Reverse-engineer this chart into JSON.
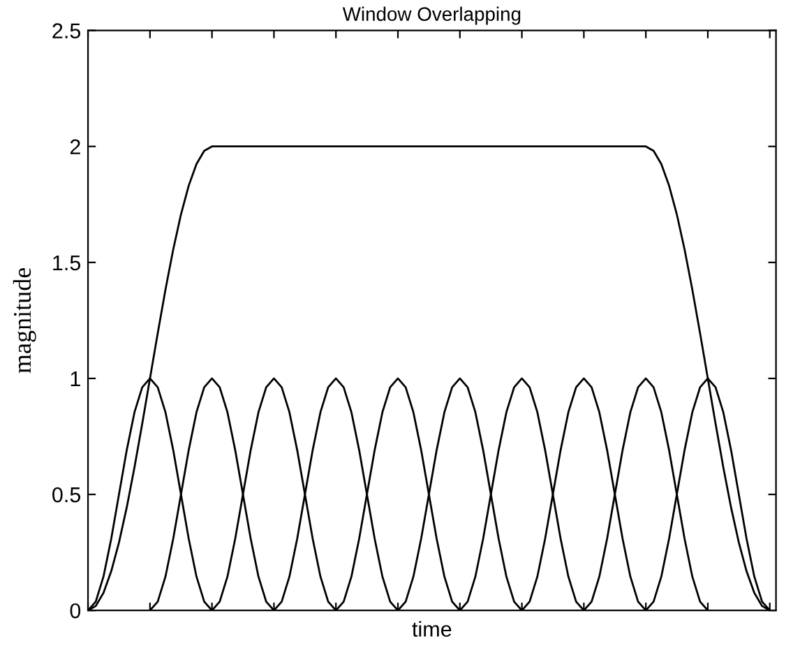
{
  "chart_data": {
    "type": "line",
    "title": "Window Overlapping",
    "xlabel": "time",
    "ylabel": "magnitude",
    "categories": [
      null,
      null,
      null,
      null,
      null,
      null,
      null,
      null,
      null,
      null,
      null,
      null,
      null,
      null,
      null,
      null,
      null,
      null,
      null,
      null,
      null,
      null,
      null,
      null,
      null,
      null,
      null,
      null,
      null,
      null,
      null,
      null,
      null,
      null,
      null,
      null,
      null,
      null,
      null,
      null,
      null,
      null,
      null,
      null,
      null,
      null,
      null,
      null,
      null,
      null,
      null,
      null,
      null,
      null,
      null,
      null,
      null,
      null,
      null,
      null,
      null,
      null,
      null,
      null,
      null,
      null,
      null,
      null,
      null,
      null,
      null,
      null,
      null,
      null,
      null,
      null,
      null,
      null,
      null,
      null,
      null,
      null,
      null,
      null,
      null,
      null,
      null,
      null,
      null
    ],
    "series": [
      {
        "color": "#000000",
        "values": [
          0,
          0.019,
          0.076,
          0.169,
          0.293,
          0.444,
          0.617,
          0.805,
          1,
          1.195,
          1.383,
          1.556,
          1.707,
          1.831,
          1.924,
          1.981,
          2,
          2,
          2,
          2,
          2,
          2,
          2,
          2,
          2,
          2,
          2,
          2,
          2,
          2,
          2,
          2,
          2,
          2,
          2,
          2,
          2,
          2,
          2,
          2,
          2,
          2,
          2,
          2,
          2,
          2,
          2,
          2,
          2,
          2,
          2,
          2,
          2,
          2,
          2,
          2,
          2,
          2,
          2,
          2,
          2,
          2,
          2,
          2,
          2,
          2,
          2,
          2,
          2,
          2,
          2,
          2,
          2,
          1.981,
          1.924,
          1.831,
          1.707,
          1.556,
          1.383,
          1.195,
          1,
          0.805,
          0.617,
          0.444,
          0.293,
          0.169,
          0.076,
          0.019,
          0
        ]
      },
      {
        "color": "#000000",
        "values": [
          0,
          0.038,
          0.146,
          0.309,
          0.5,
          0.691,
          0.854,
          0.962,
          1,
          0.962,
          0.854,
          0.691,
          0.5,
          0.309,
          0.146,
          0.038,
          0,
          null,
          null,
          null,
          null,
          null,
          null,
          null,
          null,
          null,
          null,
          null,
          null,
          null,
          null,
          null,
          null,
          null,
          null,
          null,
          null,
          null,
          null,
          null,
          null,
          null,
          null,
          null,
          null,
          null,
          null,
          null,
          null,
          null,
          null,
          null,
          null,
          null,
          null,
          null,
          null,
          null,
          null,
          null,
          null,
          null,
          null,
          null,
          null,
          null,
          null,
          null,
          null,
          null,
          null,
          null,
          null,
          null,
          null,
          null,
          null,
          null,
          null,
          null,
          null,
          null,
          null,
          null,
          null,
          null,
          null,
          null,
          null
        ]
      },
      {
        "color": "#000000",
        "values": [
          null,
          null,
          null,
          null,
          null,
          null,
          null,
          null,
          0,
          0.038,
          0.146,
          0.309,
          0.5,
          0.691,
          0.854,
          0.962,
          1,
          0.962,
          0.854,
          0.691,
          0.5,
          0.309,
          0.146,
          0.038,
          0,
          null,
          null,
          null,
          null,
          null,
          null,
          null,
          null,
          null,
          null,
          null,
          null,
          null,
          null,
          null,
          null,
          null,
          null,
          null,
          null,
          null,
          null,
          null,
          null,
          null,
          null,
          null,
          null,
          null,
          null,
          null,
          null,
          null,
          null,
          null,
          null,
          null,
          null,
          null,
          null,
          null,
          null,
          null,
          null,
          null,
          null,
          null,
          null,
          null,
          null,
          null,
          null,
          null,
          null,
          null,
          null,
          null,
          null,
          null,
          null,
          null,
          null,
          null,
          null
        ]
      },
      {
        "color": "#000000",
        "values": [
          null,
          null,
          null,
          null,
          null,
          null,
          null,
          null,
          null,
          null,
          null,
          null,
          null,
          null,
          null,
          null,
          0,
          0.038,
          0.146,
          0.309,
          0.5,
          0.691,
          0.854,
          0.962,
          1,
          0.962,
          0.854,
          0.691,
          0.5,
          0.309,
          0.146,
          0.038,
          0,
          null,
          null,
          null,
          null,
          null,
          null,
          null,
          null,
          null,
          null,
          null,
          null,
          null,
          null,
          null,
          null,
          null,
          null,
          null,
          null,
          null,
          null,
          null,
          null,
          null,
          null,
          null,
          null,
          null,
          null,
          null,
          null,
          null,
          null,
          null,
          null,
          null,
          null,
          null,
          null,
          null,
          null,
          null,
          null,
          null,
          null,
          null,
          null,
          null,
          null,
          null,
          null,
          null,
          null,
          null,
          null
        ]
      },
      {
        "color": "#000000",
        "values": [
          null,
          null,
          null,
          null,
          null,
          null,
          null,
          null,
          null,
          null,
          null,
          null,
          null,
          null,
          null,
          null,
          null,
          null,
          null,
          null,
          null,
          null,
          null,
          null,
          0,
          0.038,
          0.146,
          0.309,
          0.5,
          0.691,
          0.854,
          0.962,
          1,
          0.962,
          0.854,
          0.691,
          0.5,
          0.309,
          0.146,
          0.038,
          0,
          null,
          null,
          null,
          null,
          null,
          null,
          null,
          null,
          null,
          null,
          null,
          null,
          null,
          null,
          null,
          null,
          null,
          null,
          null,
          null,
          null,
          null,
          null,
          null,
          null,
          null,
          null,
          null,
          null,
          null,
          null,
          null,
          null,
          null,
          null,
          null,
          null,
          null,
          null,
          null,
          null,
          null,
          null,
          null,
          null,
          null,
          null,
          null
        ]
      },
      {
        "color": "#000000",
        "values": [
          null,
          null,
          null,
          null,
          null,
          null,
          null,
          null,
          null,
          null,
          null,
          null,
          null,
          null,
          null,
          null,
          null,
          null,
          null,
          null,
          null,
          null,
          null,
          null,
          null,
          null,
          null,
          null,
          null,
          null,
          null,
          null,
          0,
          0.038,
          0.146,
          0.309,
          0.5,
          0.691,
          0.854,
          0.962,
          1,
          0.962,
          0.854,
          0.691,
          0.5,
          0.309,
          0.146,
          0.038,
          0,
          null,
          null,
          null,
          null,
          null,
          null,
          null,
          null,
          null,
          null,
          null,
          null,
          null,
          null,
          null,
          null,
          null,
          null,
          null,
          null,
          null,
          null,
          null,
          null,
          null,
          null,
          null,
          null,
          null,
          null,
          null,
          null,
          null,
          null,
          null,
          null,
          null,
          null,
          null,
          null
        ]
      },
      {
        "color": "#000000",
        "values": [
          null,
          null,
          null,
          null,
          null,
          null,
          null,
          null,
          null,
          null,
          null,
          null,
          null,
          null,
          null,
          null,
          null,
          null,
          null,
          null,
          null,
          null,
          null,
          null,
          null,
          null,
          null,
          null,
          null,
          null,
          null,
          null,
          null,
          null,
          null,
          null,
          null,
          null,
          null,
          null,
          0,
          0.038,
          0.146,
          0.309,
          0.5,
          0.691,
          0.854,
          0.962,
          1,
          0.962,
          0.854,
          0.691,
          0.5,
          0.309,
          0.146,
          0.038,
          0,
          null,
          null,
          null,
          null,
          null,
          null,
          null,
          null,
          null,
          null,
          null,
          null,
          null,
          null,
          null,
          null,
          null,
          null,
          null,
          null,
          null,
          null,
          null,
          null,
          null,
          null,
          null,
          null,
          null,
          null,
          null,
          null
        ]
      },
      {
        "color": "#000000",
        "values": [
          null,
          null,
          null,
          null,
          null,
          null,
          null,
          null,
          null,
          null,
          null,
          null,
          null,
          null,
          null,
          null,
          null,
          null,
          null,
          null,
          null,
          null,
          null,
          null,
          null,
          null,
          null,
          null,
          null,
          null,
          null,
          null,
          null,
          null,
          null,
          null,
          null,
          null,
          null,
          null,
          null,
          null,
          null,
          null,
          null,
          null,
          null,
          null,
          0,
          0.038,
          0.146,
          0.309,
          0.5,
          0.691,
          0.854,
          0.962,
          1,
          0.962,
          0.854,
          0.691,
          0.5,
          0.309,
          0.146,
          0.038,
          0,
          null,
          null,
          null,
          null,
          null,
          null,
          null,
          null,
          null,
          null,
          null,
          null,
          null,
          null,
          null,
          null,
          null,
          null,
          null,
          null,
          null,
          null,
          null,
          null
        ]
      },
      {
        "color": "#000000",
        "values": [
          null,
          null,
          null,
          null,
          null,
          null,
          null,
          null,
          null,
          null,
          null,
          null,
          null,
          null,
          null,
          null,
          null,
          null,
          null,
          null,
          null,
          null,
          null,
          null,
          null,
          null,
          null,
          null,
          null,
          null,
          null,
          null,
          null,
          null,
          null,
          null,
          null,
          null,
          null,
          null,
          null,
          null,
          null,
          null,
          null,
          null,
          null,
          null,
          null,
          null,
          null,
          null,
          null,
          null,
          null,
          null,
          0,
          0.038,
          0.146,
          0.309,
          0.5,
          0.691,
          0.854,
          0.962,
          1,
          0.962,
          0.854,
          0.691,
          0.5,
          0.309,
          0.146,
          0.038,
          0,
          null,
          null,
          null,
          null,
          null,
          null,
          null,
          null,
          null,
          null,
          null,
          null,
          null,
          null,
          null,
          null
        ]
      },
      {
        "color": "#000000",
        "values": [
          null,
          null,
          null,
          null,
          null,
          null,
          null,
          null,
          null,
          null,
          null,
          null,
          null,
          null,
          null,
          null,
          null,
          null,
          null,
          null,
          null,
          null,
          null,
          null,
          null,
          null,
          null,
          null,
          null,
          null,
          null,
          null,
          null,
          null,
          null,
          null,
          null,
          null,
          null,
          null,
          null,
          null,
          null,
          null,
          null,
          null,
          null,
          null,
          null,
          null,
          null,
          null,
          null,
          null,
          null,
          null,
          null,
          null,
          null,
          null,
          null,
          null,
          null,
          null,
          0,
          0.038,
          0.146,
          0.309,
          0.5,
          0.691,
          0.854,
          0.962,
          1,
          0.962,
          0.854,
          0.691,
          0.5,
          0.309,
          0.146,
          0.038,
          0,
          null,
          null,
          null,
          null,
          null,
          null,
          null,
          null
        ]
      },
      {
        "color": "#000000",
        "values": [
          null,
          null,
          null,
          null,
          null,
          null,
          null,
          null,
          null,
          null,
          null,
          null,
          null,
          null,
          null,
          null,
          null,
          null,
          null,
          null,
          null,
          null,
          null,
          null,
          null,
          null,
          null,
          null,
          null,
          null,
          null,
          null,
          null,
          null,
          null,
          null,
          null,
          null,
          null,
          null,
          null,
          null,
          null,
          null,
          null,
          null,
          null,
          null,
          null,
          null,
          null,
          null,
          null,
          null,
          null,
          null,
          null,
          null,
          null,
          null,
          null,
          null,
          null,
          null,
          null,
          null,
          null,
          null,
          null,
          null,
          null,
          null,
          0,
          0.038,
          0.146,
          0.309,
          0.5,
          0.691,
          0.854,
          0.962,
          1,
          0.962,
          0.854,
          0.691,
          0.5,
          0.309,
          0.146,
          0.038,
          0
        ]
      }
    ],
    "ylim": [
      0,
      2.5
    ],
    "yticks": [
      0,
      0.5,
      1,
      1.5,
      2,
      2.5
    ],
    "grid": false,
    "tick_labels": "y",
    "line_style": "solid",
    "marker": "none"
  }
}
